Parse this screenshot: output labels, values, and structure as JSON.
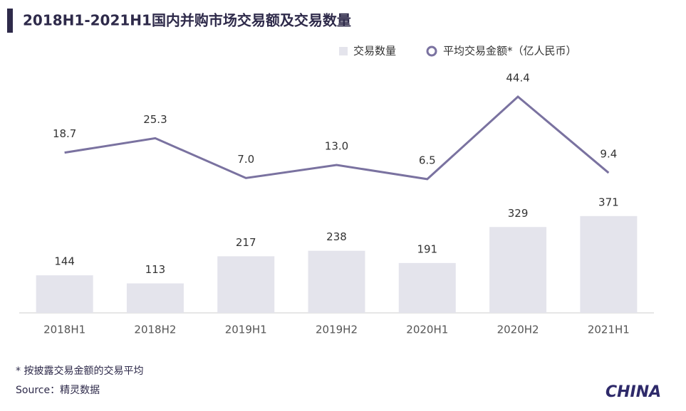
{
  "chart_data": {
    "type": "bar-line",
    "title": "2018H1-2021H1国内并购市场交易额及交易数量",
    "categories": [
      "2018H1",
      "2018H2",
      "2019H1",
      "2019H2",
      "2020H1",
      "2020H2",
      "2021H1"
    ],
    "series": [
      {
        "name": "交易数量",
        "type": "bar",
        "color": "#e4e4ec",
        "values": [
          144,
          113,
          217,
          238,
          191,
          329,
          371
        ]
      },
      {
        "name": "平均交易金额*（亿人民币）",
        "type": "line",
        "axis": "y2",
        "color": "#7a72a0",
        "values": [
          18.7,
          25.3,
          7.0,
          13.0,
          6.5,
          44.4,
          9.4
        ],
        "value_labels": [
          "18.7",
          "25.3",
          "7.0",
          "13.0",
          "6.5",
          "44.4",
          "9.4"
        ]
      }
    ],
    "ylim": [
      0,
      1000
    ],
    "y2lim": [
      -55,
      65
    ],
    "footnote": "* 按披露交易金额的交易平均",
    "source": "Source：精灵数据",
    "logo": "CHINA"
  }
}
